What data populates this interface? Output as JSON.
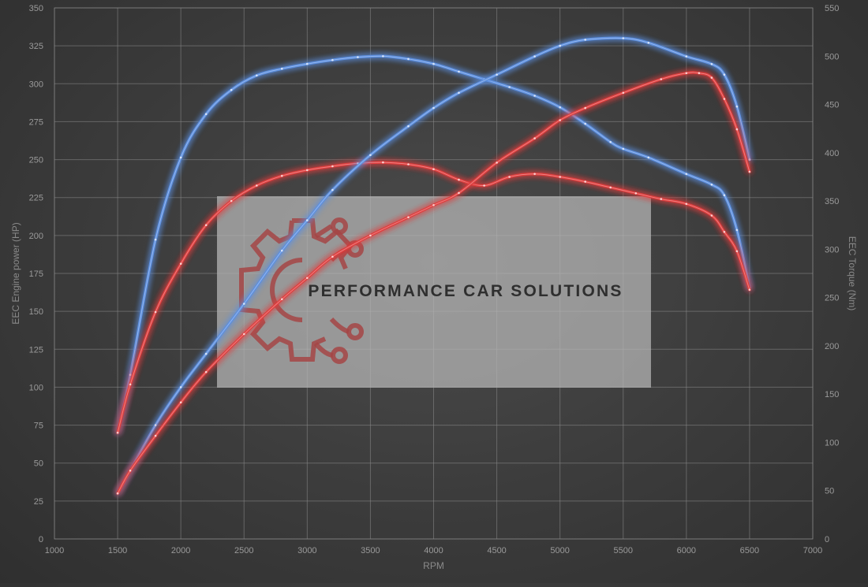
{
  "chart_data": {
    "type": "line",
    "title": "",
    "xlabel": "RPM",
    "ylabel_left": "EEC Engine power (HP)",
    "ylabel_right": "EEC Torque (Nm)",
    "xlim": [
      1000,
      7000
    ],
    "xticks": [
      1000,
      1500,
      2000,
      2500,
      3000,
      3500,
      4000,
      4500,
      5000,
      5500,
      6000,
      6500,
      7000
    ],
    "ylim_left": [
      0,
      350
    ],
    "yticks_left": [
      0,
      25,
      50,
      75,
      100,
      125,
      150,
      175,
      200,
      225,
      250,
      275,
      300,
      325,
      350
    ],
    "ylim_right": [
      0,
      550
    ],
    "yticks_right": [
      0,
      50,
      100,
      150,
      200,
      250,
      300,
      350,
      400,
      450,
      500,
      550
    ],
    "grid": true,
    "legend": "none",
    "series": [
      {
        "axis": "right",
        "color": "#5b8fe0",
        "x": [
          1500,
          1600,
          1800,
          2000,
          2200,
          2400,
          2600,
          2800,
          3000,
          3200,
          3400,
          3600,
          3800,
          4000,
          4200,
          4400,
          4600,
          4800,
          5000,
          5200,
          5400,
          5500,
          5700,
          6000,
          6200,
          6300,
          6400,
          6500
        ],
        "y": [
          110,
          170,
          310,
          395,
          440,
          465,
          480,
          487,
          492,
          496,
          499,
          500,
          497,
          492,
          484,
          476,
          468,
          459,
          447,
          430,
          411,
          404,
          395,
          378,
          367,
          356,
          320,
          260
        ]
      },
      {
        "axis": "right",
        "color": "#e03c3c",
        "x": [
          1500,
          1600,
          1800,
          2000,
          2200,
          2400,
          2600,
          2800,
          3000,
          3200,
          3400,
          3600,
          3800,
          4000,
          4200,
          4400,
          4600,
          4800,
          5000,
          5200,
          5400,
          5600,
          5800,
          6000,
          6200,
          6300,
          6400,
          6500
        ],
        "y": [
          110,
          160,
          235,
          285,
          325,
          350,
          366,
          376,
          382,
          386,
          389,
          390,
          388,
          383,
          372,
          366,
          375,
          378,
          375,
          370,
          364,
          358,
          352,
          347,
          335,
          318,
          298,
          258
        ]
      },
      {
        "axis": "left",
        "color": "#5b8fe0",
        "x": [
          1500,
          1600,
          1800,
          2000,
          2200,
          2500,
          2800,
          3000,
          3200,
          3500,
          3800,
          4000,
          4200,
          4500,
          4800,
          5000,
          5200,
          5500,
          5700,
          6000,
          6200,
          6300,
          6400,
          6500
        ],
        "y": [
          30,
          45,
          75,
          100,
          122,
          155,
          190,
          210,
          230,
          253,
          272,
          284,
          294,
          306,
          318,
          325,
          329,
          330,
          327,
          318,
          313,
          306,
          285,
          250
        ]
      },
      {
        "axis": "left",
        "color": "#e03c3c",
        "x": [
          1500,
          1600,
          1800,
          2000,
          2200,
          2500,
          2800,
          3000,
          3200,
          3500,
          3800,
          4000,
          4200,
          4500,
          4800,
          5000,
          5200,
          5500,
          5800,
          6000,
          6100,
          6200,
          6300,
          6400,
          6500
        ],
        "y": [
          30,
          45,
          68,
          90,
          110,
          135,
          158,
          172,
          186,
          200,
          212,
          220,
          228,
          248,
          264,
          276,
          284,
          294,
          303,
          307,
          307,
          304,
          290,
          270,
          242
        ]
      }
    ]
  },
  "watermark": {
    "text": "PERFORMANCE CAR SOLUTIONS"
  }
}
